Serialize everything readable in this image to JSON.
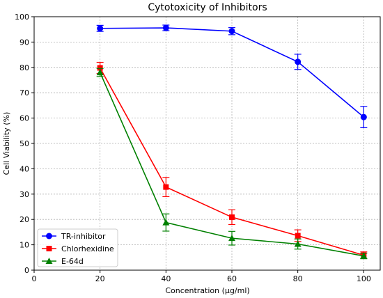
{
  "chart_data": {
    "type": "line",
    "title": "Cytotoxicity of Inhibitors",
    "xlabel": "Concentration (μg/ml)",
    "ylabel": "Cell Viability (%)",
    "xlim": [
      0,
      105
    ],
    "ylim": [
      0,
      100
    ],
    "xticks": [
      0,
      20,
      40,
      60,
      80,
      100
    ],
    "yticks": [
      0,
      10,
      20,
      30,
      40,
      50,
      60,
      70,
      80,
      90,
      100
    ],
    "grid": true,
    "legend_position": "bottom-left",
    "x": [
      20,
      40,
      60,
      80,
      100
    ],
    "series": [
      {
        "name": "TR-inhibitor",
        "marker": "circle",
        "color": "#0000ff",
        "values": [
          95.4,
          95.6,
          94.3,
          82.2,
          60.4
        ],
        "errors": [
          1.2,
          1.1,
          1.4,
          3.0,
          4.2
        ]
      },
      {
        "name": "Chlorhexidine",
        "marker": "square",
        "color": "#ff0000",
        "values": [
          79.8,
          32.8,
          20.9,
          13.6,
          5.9
        ],
        "errors": [
          2.2,
          3.8,
          2.9,
          2.3,
          1.3
        ]
      },
      {
        "name": "E-64d",
        "marker": "triangle",
        "color": "#008000",
        "values": [
          78.0,
          18.8,
          12.6,
          10.3,
          5.6
        ],
        "errors": [
          1.6,
          3.4,
          2.7,
          2.0,
          1.1
        ]
      }
    ]
  }
}
